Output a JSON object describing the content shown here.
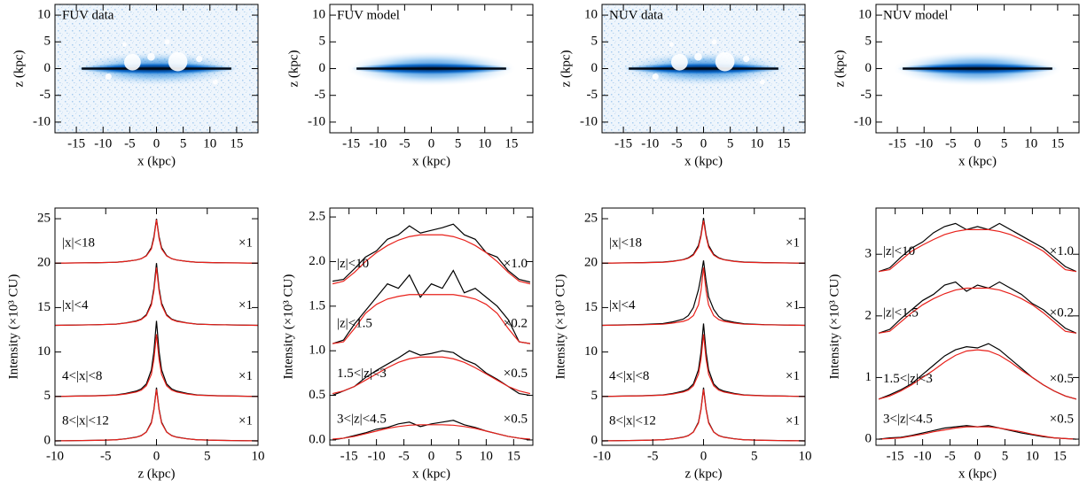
{
  "chart_data": [
    {
      "type": "image",
      "style": "data",
      "title": "FUV data",
      "xlabel": "x (kpc)",
      "ylabel": "z (kpc)",
      "xlim": [
        -19,
        19
      ],
      "ylim": [
        -12,
        12
      ],
      "xticks": [
        -15,
        -10,
        -5,
        0,
        5,
        10,
        15
      ],
      "yticks": [
        -10,
        -5,
        0,
        5,
        10
      ]
    },
    {
      "type": "image",
      "style": "model",
      "title": "FUV model",
      "xlabel": "x (kpc)",
      "ylabel": "z (kpc)",
      "xlim": [
        -19,
        19
      ],
      "ylim": [
        -12,
        12
      ],
      "xticks": [
        -15,
        -10,
        -5,
        0,
        5,
        10,
        15
      ],
      "yticks": [
        -10,
        -5,
        0,
        5,
        10
      ]
    },
    {
      "type": "image",
      "style": "data",
      "title": "NUV data",
      "xlabel": "x (kpc)",
      "ylabel": "z (kpc)",
      "xlim": [
        -19,
        19
      ],
      "ylim": [
        -12,
        12
      ],
      "xticks": [
        -15,
        -10,
        -5,
        0,
        5,
        10,
        15
      ],
      "yticks": [
        -10,
        -5,
        0,
        5,
        10
      ]
    },
    {
      "type": "image",
      "style": "model",
      "title": "NUV model",
      "xlabel": "x (kpc)",
      "ylabel": "z (kpc)",
      "xlim": [
        -19,
        19
      ],
      "ylim": [
        -12,
        12
      ],
      "xticks": [
        -15,
        -10,
        -5,
        0,
        5,
        10,
        15
      ],
      "yticks": [
        -10,
        -5,
        0,
        5,
        10
      ]
    },
    {
      "type": "line",
      "xlabel": "z (kpc)",
      "ylabel": "Intensity (×10³ CU)",
      "xlim": [
        -10,
        10
      ],
      "ylim": [
        -0.5,
        26.2
      ],
      "xticks": [
        -10,
        -5,
        0,
        5,
        10
      ],
      "yticks": [
        0,
        5,
        10,
        15,
        20,
        25
      ],
      "data_color": "#000000",
      "model_color": "#e8201a",
      "x": [
        -10,
        -8,
        -6,
        -4,
        -3,
        -2,
        -1.5,
        -1,
        -0.5,
        -0.25,
        0,
        0.25,
        0.5,
        1,
        1.5,
        2,
        3,
        4,
        6,
        8,
        10
      ],
      "profiles": [
        {
          "label": "|x|<18",
          "scale": "×1",
          "data": [
            20,
            20.03,
            20.05,
            20.1,
            20.2,
            20.35,
            20.5,
            20.85,
            21.75,
            23,
            25,
            23,
            21.75,
            20.85,
            20.5,
            20.35,
            20.2,
            20.1,
            20.05,
            20.03,
            20
          ],
          "model": [
            20,
            20.02,
            20.05,
            20.1,
            20.2,
            20.35,
            20.5,
            20.8,
            21.6,
            22.8,
            24.9,
            22.8,
            21.6,
            20.8,
            20.5,
            20.35,
            20.2,
            20.1,
            20.05,
            20.02,
            20
          ]
        },
        {
          "label": "|x|<4",
          "scale": "×1",
          "data": [
            13,
            13.04,
            13.07,
            13.14,
            13.28,
            13.5,
            13.7,
            14.2,
            15.5,
            17.2,
            20,
            17.2,
            15.5,
            14.2,
            13.7,
            13.5,
            13.28,
            13.14,
            13.07,
            13.04,
            13
          ],
          "model": [
            13,
            13.03,
            13.07,
            13.13,
            13.26,
            13.45,
            13.65,
            14.1,
            15.3,
            16.9,
            19.5,
            16.9,
            15.3,
            14.1,
            13.65,
            13.45,
            13.26,
            13.13,
            13.07,
            13.03,
            13
          ]
        },
        {
          "label": "4<|x|<8",
          "scale": "×1",
          "data": [
            5,
            5.04,
            5.08,
            5.17,
            5.34,
            5.6,
            5.85,
            6.4,
            8,
            10.1,
            13.5,
            10.1,
            8,
            6.4,
            5.85,
            5.6,
            5.34,
            5.17,
            5.08,
            5.04,
            5
          ],
          "model": [
            5,
            5.03,
            5.07,
            5.14,
            5.28,
            5.5,
            5.7,
            6.2,
            7.5,
            9.2,
            12,
            9.2,
            7.5,
            6.2,
            5.7,
            5.5,
            5.28,
            5.14,
            5.07,
            5.03,
            5
          ]
        },
        {
          "label": "8<|x|<12",
          "scale": "×1",
          "data": [
            0,
            0.03,
            0.06,
            0.12,
            0.24,
            0.42,
            0.6,
            1,
            2.1,
            3.6,
            6,
            3.6,
            2.1,
            1,
            0.6,
            0.42,
            0.24,
            0.12,
            0.06,
            0.03,
            0
          ],
          "model": [
            0,
            0.03,
            0.06,
            0.12,
            0.23,
            0.4,
            0.58,
            0.98,
            2,
            3.5,
            5.8,
            3.5,
            2,
            0.98,
            0.58,
            0.4,
            0.23,
            0.12,
            0.06,
            0.03,
            0
          ]
        }
      ]
    },
    {
      "type": "line",
      "xlabel": "x (kpc)",
      "ylabel": "Intensity (×10³ CU)",
      "xlim": [
        -18.5,
        18.5
      ],
      "ylim": [
        -0.06,
        2.6
      ],
      "xticks": [
        -15,
        -10,
        -5,
        0,
        5,
        10,
        15
      ],
      "yticks": [
        {
          "value": 0,
          "label": "0.0"
        },
        0.5,
        {
          "value": 1,
          "label": "1.0"
        },
        1.5,
        {
          "value": 2,
          "label": "2.0"
        },
        2.5
      ],
      "data_color": "#000000",
      "model_color": "#e8201a",
      "x": [
        -18,
        -16,
        -14,
        -12,
        -10,
        -8,
        -6,
        -4,
        -2,
        0,
        2,
        4,
        6,
        8,
        10,
        12,
        14,
        16,
        18
      ],
      "profiles": [
        {
          "label": "|z|<10",
          "scale": "×1.0",
          "data": [
            1.78,
            1.8,
            1.92,
            2.05,
            2.12,
            2.25,
            2.3,
            2.4,
            2.32,
            2.35,
            2.38,
            2.42,
            2.3,
            2.25,
            2.1,
            2.05,
            1.9,
            1.8,
            1.77
          ],
          "model": [
            1.75,
            1.78,
            1.88,
            2.0,
            2.1,
            2.18,
            2.24,
            2.28,
            2.3,
            2.3,
            2.3,
            2.28,
            2.24,
            2.18,
            2.1,
            2.0,
            1.88,
            1.78,
            1.75
          ]
        },
        {
          "label": "|z|<1.5",
          "scale": "×0.2",
          "data": [
            1.08,
            1.12,
            1.3,
            1.45,
            1.6,
            1.75,
            1.7,
            1.85,
            1.6,
            1.75,
            1.7,
            1.9,
            1.65,
            1.7,
            1.6,
            1.5,
            1.35,
            1.1,
            1.08
          ],
          "model": [
            1.08,
            1.1,
            1.25,
            1.42,
            1.52,
            1.58,
            1.61,
            1.63,
            1.63,
            1.63,
            1.63,
            1.63,
            1.61,
            1.58,
            1.52,
            1.42,
            1.25,
            1.1,
            1.08
          ]
        },
        {
          "label": "1.5<|z|<3",
          "scale": "×0.5",
          "data": [
            0.5,
            0.55,
            0.6,
            0.7,
            0.78,
            0.85,
            0.92,
            1.0,
            0.95,
            0.97,
            1.0,
            0.98,
            0.9,
            0.85,
            0.75,
            0.68,
            0.6,
            0.52,
            0.5
          ],
          "model": [
            0.52,
            0.55,
            0.6,
            0.67,
            0.74,
            0.81,
            0.87,
            0.91,
            0.93,
            0.93,
            0.93,
            0.91,
            0.87,
            0.81,
            0.74,
            0.67,
            0.6,
            0.55,
            0.52
          ]
        },
        {
          "label": "3<|z|<4.5",
          "scale": "×0.5",
          "data": [
            0,
            0.02,
            0.05,
            0.08,
            0.12,
            0.14,
            0.18,
            0.2,
            0.15,
            0.18,
            0.2,
            0.22,
            0.17,
            0.14,
            0.1,
            0.07,
            0.04,
            0.02,
            0
          ],
          "model": [
            0.01,
            0.02,
            0.04,
            0.07,
            0.1,
            0.13,
            0.15,
            0.165,
            0.17,
            0.17,
            0.17,
            0.165,
            0.15,
            0.13,
            0.1,
            0.07,
            0.04,
            0.02,
            0.01
          ]
        }
      ]
    },
    {
      "type": "line",
      "xlabel": "z (kpc)",
      "ylabel": "Intensity (×10³ CU)",
      "xlim": [
        -10,
        10
      ],
      "ylim": [
        -0.5,
        26.2
      ],
      "xticks": [
        -10,
        -5,
        0,
        5,
        10
      ],
      "yticks": [
        0,
        5,
        10,
        15,
        20,
        25
      ],
      "data_color": "#000000",
      "model_color": "#e8201a",
      "x": [
        -10,
        -8,
        -6,
        -4,
        -3,
        -2,
        -1.5,
        -1,
        -0.5,
        -0.25,
        0,
        0.25,
        0.5,
        1,
        1.5,
        2,
        3,
        4,
        6,
        8,
        10
      ],
      "profiles": [
        {
          "label": "|x|<18",
          "scale": "×1",
          "data": [
            20,
            20.03,
            20.06,
            20.12,
            20.22,
            20.4,
            20.6,
            21,
            22,
            23.2,
            25.1,
            23.2,
            22,
            21,
            20.6,
            20.4,
            20.22,
            20.12,
            20.06,
            20.03,
            20
          ],
          "model": [
            20,
            20.02,
            20.05,
            20.1,
            20.2,
            20.38,
            20.55,
            20.9,
            21.8,
            23,
            24.8,
            23,
            21.8,
            20.9,
            20.55,
            20.38,
            20.2,
            20.1,
            20.05,
            20.02,
            20
          ]
        },
        {
          "label": "|x|<4",
          "scale": "×1",
          "data": [
            13,
            13.05,
            13.1,
            13.2,
            13.4,
            13.7,
            14.1,
            15,
            17,
            18.5,
            20.3,
            18,
            16.2,
            14.8,
            14,
            13.6,
            13.35,
            13.18,
            13.08,
            13.04,
            13
          ],
          "model": [
            13,
            13.03,
            13.07,
            13.13,
            13.26,
            13.45,
            13.65,
            14.1,
            15.3,
            16.9,
            19.5,
            16.9,
            15.3,
            14.1,
            13.65,
            13.45,
            13.26,
            13.13,
            13.07,
            13.03,
            13
          ]
        },
        {
          "label": "4<|x|<8",
          "scale": "×1",
          "data": [
            5,
            5.04,
            5.08,
            5.17,
            5.34,
            5.6,
            5.85,
            6.4,
            8,
            10,
            13.2,
            10,
            8,
            6.4,
            5.85,
            5.6,
            5.34,
            5.17,
            5.08,
            5.04,
            5
          ],
          "model": [
            5,
            5.03,
            5.07,
            5.14,
            5.28,
            5.5,
            5.7,
            6.2,
            7.5,
            9.2,
            12,
            9.2,
            7.5,
            6.2,
            5.7,
            5.5,
            5.28,
            5.14,
            5.07,
            5.03,
            5
          ]
        },
        {
          "label": "8<|x|<12",
          "scale": "×1",
          "data": [
            0,
            0.03,
            0.06,
            0.12,
            0.24,
            0.42,
            0.6,
            1,
            2.1,
            3.6,
            6,
            3.6,
            2.1,
            1,
            0.6,
            0.42,
            0.24,
            0.12,
            0.06,
            0.03,
            0
          ],
          "model": [
            0,
            0.03,
            0.06,
            0.12,
            0.23,
            0.4,
            0.58,
            0.98,
            2,
            3.5,
            5.8,
            3.5,
            2,
            0.98,
            0.58,
            0.4,
            0.23,
            0.12,
            0.06,
            0.03,
            0
          ]
        }
      ]
    },
    {
      "type": "line",
      "xlabel": "x (kpc)",
      "ylabel": "Intensity (×10³ CU)",
      "xlim": [
        -18.5,
        18.5
      ],
      "ylim": [
        -0.1,
        3.75
      ],
      "xticks": [
        -15,
        -10,
        -5,
        0,
        5,
        10,
        15
      ],
      "yticks": [
        0,
        1,
        2,
        3
      ],
      "data_color": "#000000",
      "model_color": "#e8201a",
      "x": [
        -18,
        -16,
        -14,
        -12,
        -10,
        -8,
        -6,
        -4,
        -2,
        0,
        2,
        4,
        6,
        8,
        10,
        12,
        14,
        16,
        18
      ],
      "profiles": [
        {
          "label": "|z|<10",
          "scale": "×1.0",
          "data": [
            2.72,
            2.78,
            2.95,
            3.1,
            3.2,
            3.35,
            3.45,
            3.5,
            3.4,
            3.45,
            3.4,
            3.5,
            3.4,
            3.3,
            3.2,
            3.1,
            2.95,
            2.8,
            2.72
          ],
          "model": [
            2.72,
            2.75,
            2.9,
            3.05,
            3.15,
            3.24,
            3.32,
            3.37,
            3.4,
            3.4,
            3.4,
            3.37,
            3.32,
            3.24,
            3.15,
            3.05,
            2.9,
            2.75,
            2.72
          ]
        },
        {
          "label": "|z|<1.5",
          "scale": "×0.2",
          "data": [
            1.72,
            1.78,
            1.95,
            2.1,
            2.25,
            2.35,
            2.5,
            2.55,
            2.4,
            2.5,
            2.45,
            2.55,
            2.45,
            2.35,
            2.2,
            2.1,
            1.95,
            1.8,
            1.72
          ],
          "model": [
            1.72,
            1.75,
            1.9,
            2.05,
            2.18,
            2.28,
            2.36,
            2.42,
            2.45,
            2.45,
            2.45,
            2.42,
            2.36,
            2.28,
            2.18,
            2.05,
            1.9,
            1.75,
            1.72
          ]
        },
        {
          "label": "1.5<|z|<3",
          "scale": "×0.5",
          "data": [
            0.65,
            0.72,
            0.8,
            0.9,
            1.05,
            1.2,
            1.35,
            1.45,
            1.5,
            1.48,
            1.55,
            1.45,
            1.3,
            1.15,
            1.0,
            0.88,
            0.78,
            0.7,
            0.65
          ],
          "model": [
            0.65,
            0.7,
            0.78,
            0.88,
            1.0,
            1.12,
            1.25,
            1.36,
            1.43,
            1.45,
            1.43,
            1.36,
            1.25,
            1.12,
            1.0,
            0.88,
            0.78,
            0.7,
            0.65
          ]
        },
        {
          "label": "3<|z|<4.5",
          "scale": "×0.5",
          "data": [
            0,
            0.02,
            0.03,
            0.06,
            0.1,
            0.14,
            0.18,
            0.2,
            0.22,
            0.2,
            0.22,
            0.18,
            0.14,
            0.1,
            0.07,
            0.04,
            0.02,
            0.01,
            0
          ],
          "model": [
            0,
            0.01,
            0.02,
            0.05,
            0.08,
            0.12,
            0.15,
            0.18,
            0.2,
            0.2,
            0.2,
            0.18,
            0.15,
            0.12,
            0.08,
            0.05,
            0.02,
            0.01,
            0
          ]
        }
      ]
    }
  ]
}
